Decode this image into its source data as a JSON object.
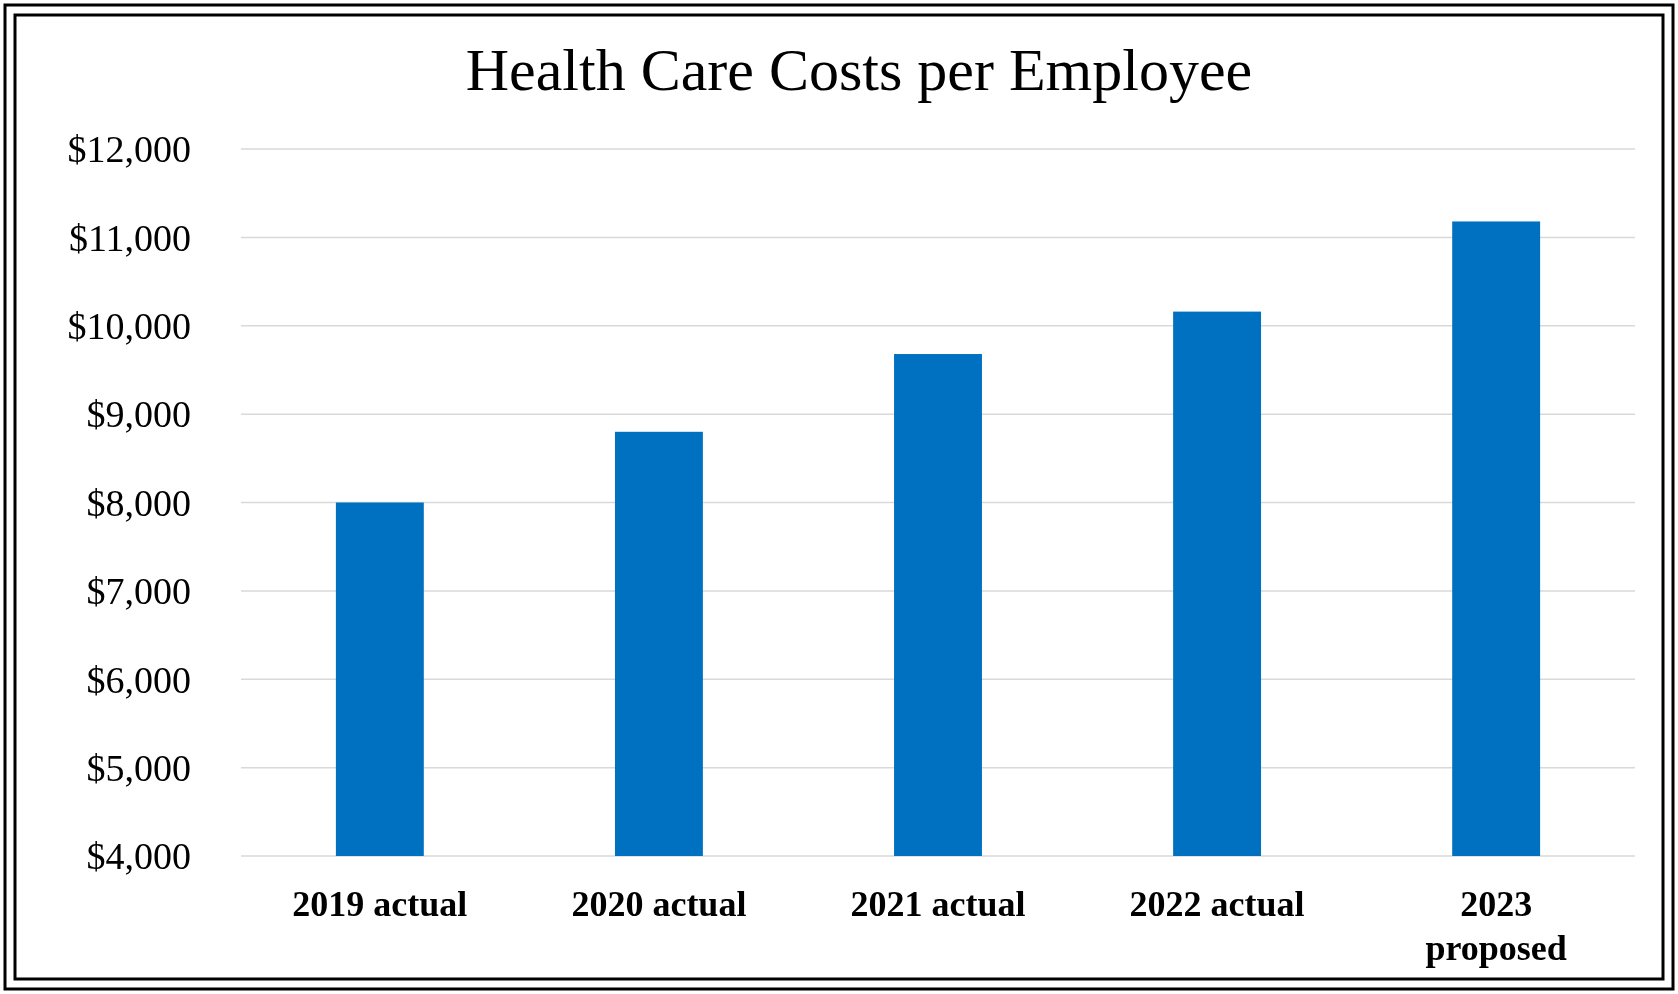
{
  "chart_data": {
    "type": "bar",
    "title": "Health Care Costs per Employee",
    "categories": [
      "2019 actual",
      "2020 actual",
      "2021 actual",
      "2022 actual",
      "2023 proposed"
    ],
    "values": [
      8000,
      8800,
      9680,
      10160,
      11180
    ],
    "color": "#0070c0",
    "ylim": [
      4000,
      12000
    ],
    "yticks": [
      {
        "value": 4000,
        "label": "$4,000"
      },
      {
        "value": 5000,
        "label": "$5,000"
      },
      {
        "value": 6000,
        "label": "$6,000"
      },
      {
        "value": 7000,
        "label": "$7,000"
      },
      {
        "value": 8000,
        "label": "$8,000"
      },
      {
        "value": 9000,
        "label": "$9,000"
      },
      {
        "value": 10000,
        "label": "$10,000"
      },
      {
        "value": 11000,
        "label": "$11,000"
      },
      {
        "value": 12000,
        "label": "$12,000"
      }
    ],
    "grid": "y"
  }
}
